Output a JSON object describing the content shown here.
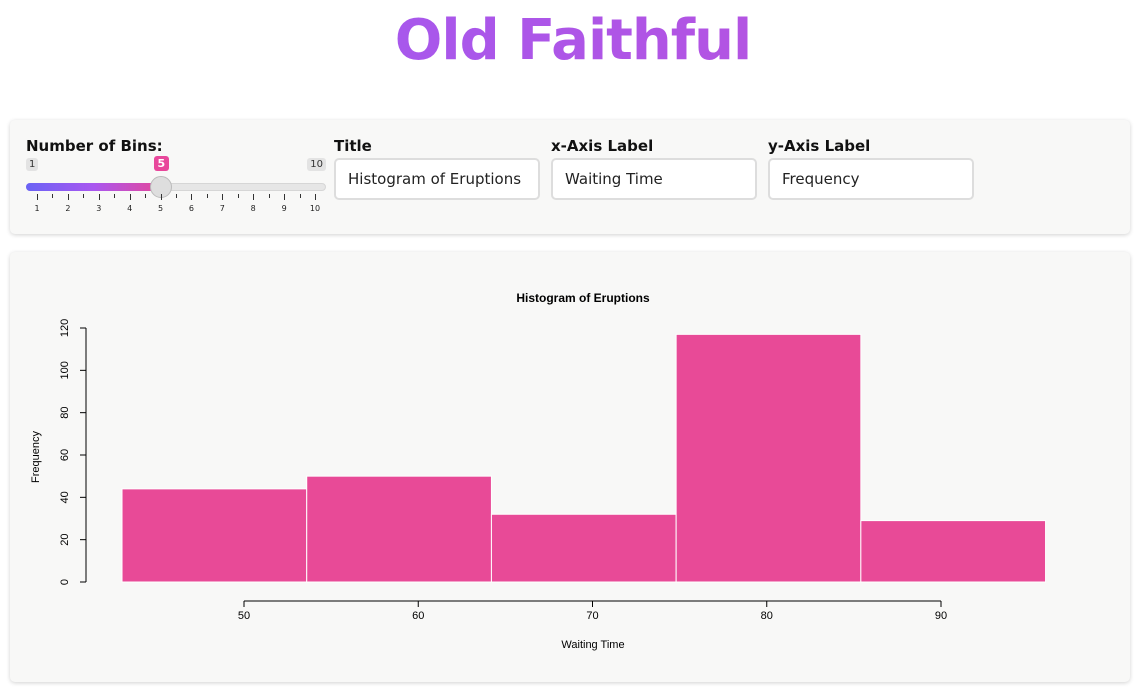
{
  "app_title": "Old Faithful",
  "controls": {
    "bins": {
      "label": "Number of Bins:",
      "min": 1,
      "max": 10,
      "value": 5,
      "min_label": "1",
      "max_label": "10",
      "value_label": "5",
      "ticks": [
        "1",
        "2",
        "3",
        "4",
        "5",
        "6",
        "7",
        "8",
        "9",
        "10"
      ]
    },
    "title": {
      "label": "Title",
      "value": "Histogram of Eruptions"
    },
    "xlabel": {
      "label": "x-Axis Label",
      "value": "Waiting Time"
    },
    "ylabel": {
      "label": "y-Axis Label",
      "value": "Frequency"
    }
  },
  "chart_data": {
    "type": "bar",
    "title": "Histogram of Eruptions",
    "xlabel": "Waiting Time",
    "ylabel": "Frequency",
    "bin_edges": [
      43,
      53.6,
      64.2,
      74.8,
      85.4,
      96
    ],
    "values": [
      44,
      50,
      32,
      117,
      29
    ],
    "xticks": [
      50,
      60,
      70,
      80,
      90
    ],
    "yticks": [
      0,
      20,
      40,
      60,
      80,
      100,
      120
    ],
    "xlim": [
      43,
      96
    ],
    "ylim": [
      0,
      120
    ],
    "grid": false,
    "bar_color": "#e84a97"
  }
}
